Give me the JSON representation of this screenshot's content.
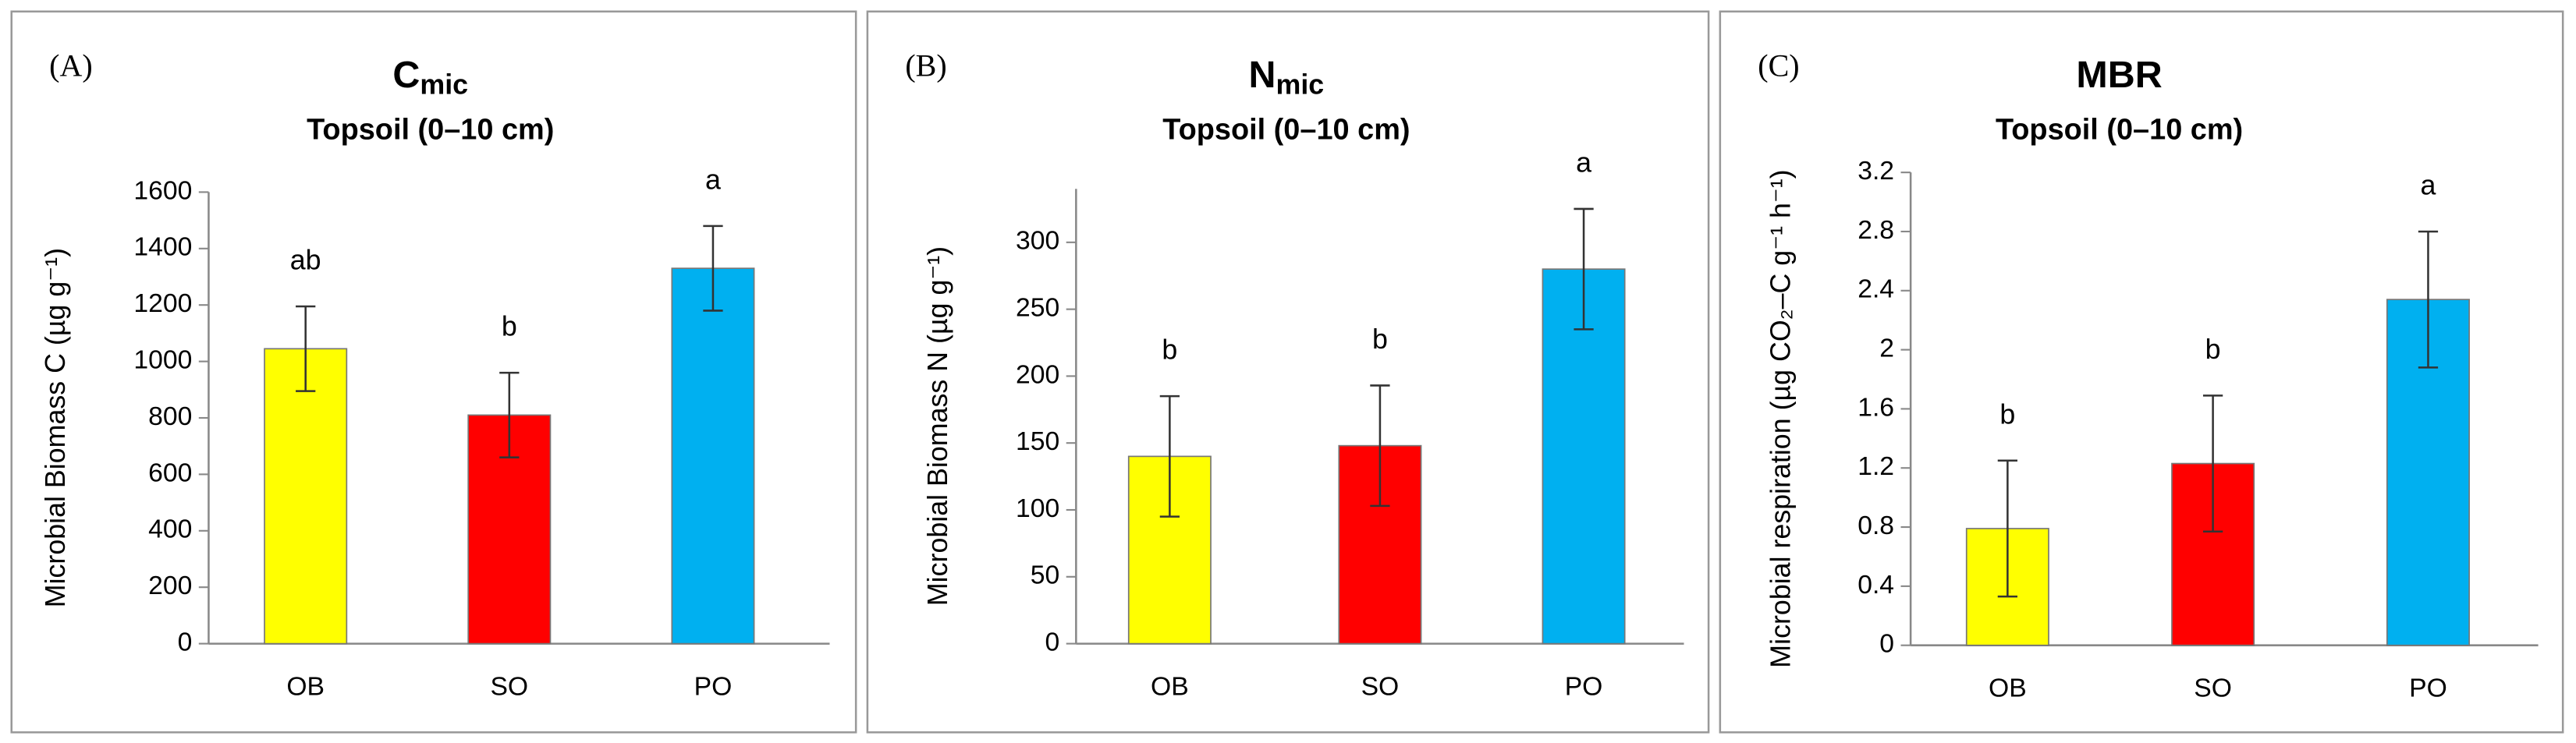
{
  "chart_data": [
    {
      "type": "bar",
      "panel_label": "(A)",
      "title": "C",
      "title_subscript": "mic",
      "subtitle": "Topsoil (0–10 cm)",
      "y_label": "Microbial Biomass C (µg g⁻¹)",
      "categories": [
        "OB",
        "SO",
        "PO"
      ],
      "values": [
        1045,
        810,
        1330
      ],
      "errors": [
        150,
        150,
        150
      ],
      "annotations": [
        "ab",
        "b",
        "a"
      ],
      "colors": [
        "#ffff00",
        "#ff0000",
        "#00b0f0"
      ],
      "ylim": [
        0,
        1600
      ],
      "yticks": [
        0,
        200,
        400,
        600,
        800,
        1000,
        1200,
        1400,
        1600
      ]
    },
    {
      "type": "bar",
      "panel_label": "(B)",
      "title": "N",
      "title_subscript": "mic",
      "subtitle": "Topsoil (0–10 cm)",
      "y_label": "Microbial Biomass N (µg g⁻¹)",
      "categories": [
        "OB",
        "SO",
        "PO"
      ],
      "values": [
        140,
        148,
        280
      ],
      "errors": [
        45,
        45,
        45
      ],
      "annotations": [
        "b",
        "b",
        "a"
      ],
      "colors": [
        "#ffff00",
        "#ff0000",
        "#00b0f0"
      ],
      "ylim": [
        0,
        340
      ],
      "yticks": [
        0,
        50,
        100,
        150,
        200,
        250,
        300
      ]
    },
    {
      "type": "bar",
      "panel_label": "(C)",
      "title": "MBR",
      "subtitle": "Topsoil (0–10 cm)",
      "y_label": "Microbial respiration (µg CO₂–C g⁻¹ h⁻¹)",
      "categories": [
        "OB",
        "SO",
        "PO"
      ],
      "values": [
        0.79,
        1.23,
        2.34
      ],
      "errors": [
        0.46,
        0.46,
        0.46
      ],
      "annotations": [
        "b",
        "b",
        "a"
      ],
      "colors": [
        "#ffff00",
        "#ff0000",
        "#00b0f0"
      ],
      "ylim": [
        0,
        3.2
      ],
      "yticks": [
        0,
        0.4,
        0.8,
        1.2,
        1.6,
        2,
        2.4,
        2.8,
        3.2
      ]
    }
  ]
}
